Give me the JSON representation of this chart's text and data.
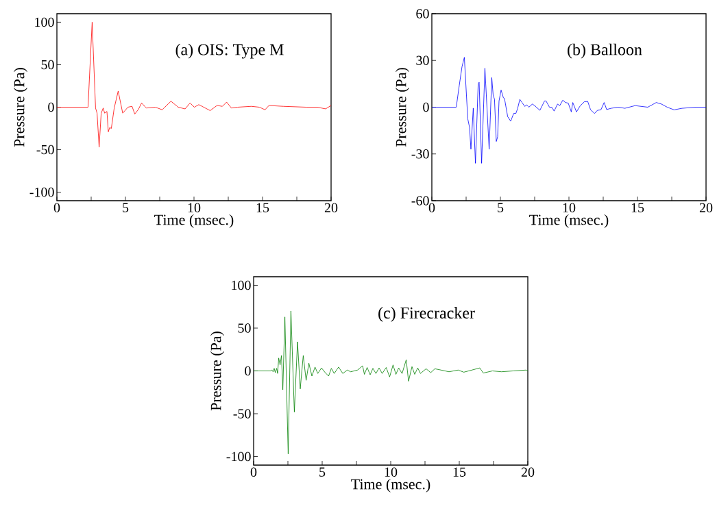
{
  "chart_data": [
    {
      "type": "line",
      "title": "(a) OIS: Type M",
      "xlabel": "Time (msec.)",
      "ylabel": "Pressure (Pa)",
      "color": "#ff0000",
      "xlim": [
        0,
        20
      ],
      "ylim": [
        -110,
        110
      ],
      "xticks": [
        0,
        {
          "value": 2.5,
          "label": null
        },
        5,
        {
          "value": 7.5,
          "label": null
        },
        10,
        {
          "value": 12.5,
          "label": null
        },
        15,
        {
          "value": 17.5,
          "label": null
        },
        20
      ],
      "yticks": [
        -100,
        -50,
        0,
        50,
        100
      ],
      "x": [
        0,
        2.27,
        2.57,
        2.82,
        2.93,
        3.08,
        3.23,
        3.38,
        3.48,
        3.65,
        3.75,
        3.85,
        3.97,
        4.18,
        4.47,
        4.8,
        5.02,
        5.18,
        5.48,
        5.68,
        5.93,
        6.18,
        6.52,
        7.18,
        7.68,
        8.32,
        8.85,
        9.35,
        9.72,
        10.02,
        10.35,
        11.18,
        11.68,
        12.07,
        12.38,
        12.73,
        13.18,
        14.18,
        14.77,
        15.18,
        15.47,
        16.52,
        18.18,
        19,
        19.6,
        20
      ],
      "values": [
        0,
        0,
        100,
        -1,
        -7,
        -47,
        -7,
        -1,
        -7,
        -5,
        -29,
        -24,
        -25,
        -1,
        19,
        -7,
        -3,
        0,
        1,
        -8,
        -3,
        5,
        -1,
        0,
        -3,
        7,
        0,
        -2,
        5,
        0,
        3,
        -4,
        2,
        1,
        6,
        -1,
        0,
        1,
        0,
        -3,
        2,
        1,
        0,
        0,
        -2,
        2
      ]
    },
    {
      "type": "line",
      "title": "(b) Balloon",
      "xlabel": "Time (msec.)",
      "ylabel": "Pressure (Pa)",
      "color": "#0000ff",
      "xlim": [
        0,
        20
      ],
      "ylim": [
        -60,
        60
      ],
      "xticks": [
        0,
        {
          "value": 2.5,
          "label": null
        },
        5,
        {
          "value": 7.5,
          "label": null
        },
        10,
        {
          "value": 12.5,
          "label": null
        },
        15,
        {
          "value": 17.5,
          "label": null
        },
        20
      ],
      "yticks": [
        -60,
        -30,
        0,
        30,
        60
      ],
      "x": [
        0,
        1.78,
        2.0,
        2.2,
        2.37,
        2.62,
        2.75,
        2.85,
        3.02,
        3.18,
        3.38,
        3.45,
        3.63,
        3.87,
        4.18,
        4.37,
        4.47,
        4.57,
        4.7,
        4.8,
        4.9,
        5.05,
        5.22,
        5.3,
        5.53,
        5.75,
        5.97,
        6.13,
        6.25,
        6.42,
        6.58,
        6.78,
        6.92,
        7.08,
        7.33,
        7.5,
        7.88,
        8.22,
        8.33,
        8.58,
        8.75,
        8.92,
        9.17,
        9.33,
        9.55,
        9.75,
        9.95,
        10.17,
        10.28,
        10.55,
        10.83,
        11.13,
        11.37,
        11.58,
        11.87,
        12.08,
        12.33,
        12.57,
        12.75,
        13.08,
        13.58,
        14.08,
        14.83,
        15.75,
        16.37,
        16.75,
        17.17,
        17.67,
        18.25,
        19.25,
        20
      ],
      "values": [
        0,
        0,
        14,
        26,
        32,
        -7.5,
        -13,
        -27,
        -0.6,
        -36,
        15,
        16,
        -36,
        25,
        -27,
        19,
        8,
        5,
        -22,
        -19,
        4,
        11,
        6,
        5.5,
        -6,
        -9,
        -4,
        -4,
        -1,
        5,
        3,
        0.5,
        1.5,
        0,
        2,
        1,
        -2,
        4,
        4,
        0,
        0,
        -2.5,
        2,
        1,
        4.5,
        3,
        2.6,
        -3,
        3,
        -3,
        1,
        3.5,
        3.7,
        -1.7,
        -4,
        -2,
        -1.7,
        3,
        -1.5,
        -0.7,
        0,
        -0.7,
        1,
        0,
        3,
        2,
        0,
        -1.7,
        -0.7,
        0,
        0
      ]
    },
    {
      "type": "line",
      "title": "(c) Firecracker",
      "xlabel": "Time (msec.)",
      "ylabel": "Pressure (Pa)",
      "color": "#008000",
      "xlim": [
        0,
        20
      ],
      "ylim": [
        -110,
        110
      ],
      "xticks": [
        0,
        {
          "value": 2.5,
          "label": null
        },
        5,
        {
          "value": 7.5,
          "label": null
        },
        10,
        {
          "value": 12.5,
          "label": null
        },
        15,
        {
          "value": 17.5,
          "label": null
        },
        20
      ],
      "yticks": [
        -100,
        -50,
        0,
        50,
        100
      ],
      "x": [
        0,
        1.25,
        1.33,
        1.42,
        1.5,
        1.58,
        1.68,
        1.75,
        1.83,
        1.93,
        2.03,
        2.13,
        2.28,
        2.52,
        2.72,
        2.97,
        3.2,
        3.4,
        3.62,
        3.83,
        4.03,
        4.25,
        4.48,
        4.68,
        4.95,
        5.22,
        5.47,
        5.67,
        5.88,
        6.2,
        6.5,
        6.83,
        7.08,
        7.58,
        7.95,
        8.08,
        8.28,
        8.5,
        8.7,
        8.92,
        9.15,
        9.38,
        9.67,
        9.92,
        10.17,
        10.38,
        10.58,
        10.83,
        11.13,
        11.3,
        11.55,
        11.75,
        11.97,
        12.17,
        12.58,
        12.92,
        13.22,
        13.67,
        14.25,
        14.92,
        15.33,
        15.92,
        16.5,
        16.75,
        17.42,
        18.08,
        18.92,
        19.87,
        20
      ],
      "values": [
        0,
        0,
        1,
        -1,
        3,
        -2,
        3,
        -3,
        15,
        7,
        18,
        -22,
        63,
        -97,
        70,
        -48,
        34,
        -21,
        18,
        -11,
        9,
        -6,
        4.5,
        -3,
        3.5,
        -2,
        -6,
        3,
        -3,
        4.5,
        -3,
        1,
        -1,
        1,
        6,
        -4,
        4,
        -4.5,
        3,
        -3,
        3.5,
        -3,
        4,
        -7,
        7,
        -4,
        3.5,
        -3,
        13,
        -12,
        5,
        -4,
        3.5,
        -3,
        2.5,
        -2,
        2.5,
        1,
        -1,
        1,
        -1.5,
        1,
        3.5,
        -2.5,
        0,
        -1,
        0,
        1,
        0
      ]
    }
  ]
}
